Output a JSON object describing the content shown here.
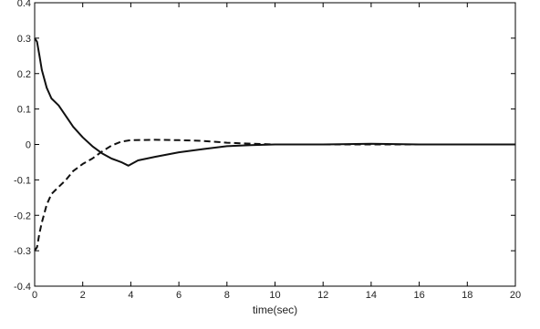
{
  "chart_data": {
    "type": "line",
    "title": "",
    "xlabel": "time(sec)",
    "ylabel": "",
    "xlim": [
      0,
      20
    ],
    "ylim": [
      -0.4,
      0.4
    ],
    "x_ticks": [
      0,
      2,
      4,
      6,
      8,
      10,
      12,
      14,
      16,
      18,
      20
    ],
    "y_ticks": [
      0.4,
      0.3,
      0.2,
      0.1,
      0,
      -0.1,
      -0.2,
      -0.3,
      -0.4
    ],
    "x_tick_labels": [
      "0",
      "2",
      "4",
      "6",
      "8",
      "10",
      "12",
      "14",
      "16",
      "18",
      "20"
    ],
    "y_tick_labels": [
      "0.4",
      "0.3",
      "0.2",
      "0.1",
      "0",
      "-0.1",
      "-0.2",
      "-0.3",
      "-0.4"
    ],
    "grid": false,
    "series": [
      {
        "style": "solid",
        "color": "#111111",
        "x": [
          0,
          0.1,
          0.2,
          0.3,
          0.5,
          0.7,
          1.0,
          1.3,
          1.6,
          2.0,
          2.4,
          2.8,
          3.2,
          3.6,
          3.9,
          4.3,
          5.0,
          6.0,
          7.0,
          8.0,
          9.0,
          10.0,
          12.0,
          14.0,
          16.0,
          18.0,
          20.0
        ],
        "y": [
          0.3,
          0.29,
          0.25,
          0.21,
          0.16,
          0.13,
          0.11,
          0.08,
          0.05,
          0.02,
          -0.005,
          -0.025,
          -0.04,
          -0.05,
          -0.06,
          -0.045,
          -0.035,
          -0.022,
          -0.013,
          -0.005,
          -0.002,
          0,
          0,
          0.002,
          0,
          0,
          0
        ]
      },
      {
        "style": "dashed",
        "color": "#111111",
        "x": [
          0,
          0.1,
          0.2,
          0.3,
          0.5,
          0.7,
          1.0,
          1.3,
          1.6,
          2.0,
          2.4,
          2.8,
          3.2,
          3.6,
          4.0,
          5.0,
          6.0,
          7.0,
          8.0,
          9.0,
          10.0,
          12.0,
          14.0,
          16.0,
          18.0,
          20.0
        ],
        "y": [
          -0.3,
          -0.29,
          -0.25,
          -0.22,
          -0.17,
          -0.14,
          -0.12,
          -0.1,
          -0.075,
          -0.055,
          -0.04,
          -0.02,
          -0.003,
          0.008,
          0.012,
          0.013,
          0.012,
          0.01,
          0.005,
          0.002,
          0,
          0,
          0,
          0,
          0,
          0
        ]
      }
    ]
  }
}
